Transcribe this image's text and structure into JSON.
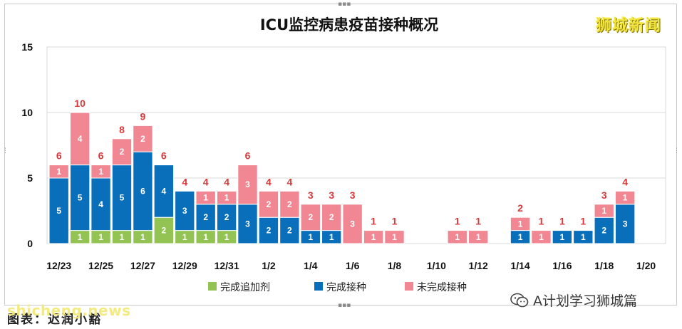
{
  "chart_data": {
    "type": "bar",
    "stacked": true,
    "title": "ICU监控病患疫苗接种概况",
    "ylim": [
      0,
      15
    ],
    "yticks": [
      0,
      5,
      10,
      15
    ],
    "grid": true,
    "legend_position": "bottom",
    "x_dates": [
      "12/23",
      "12/24",
      "12/25",
      "12/26",
      "12/27",
      "12/28",
      "12/29",
      "12/30",
      "12/31",
      "1/1",
      "1/2",
      "1/3",
      "1/4",
      "1/5",
      "1/6",
      "1/7",
      "1/8",
      "1/9",
      "1/10",
      "1/11",
      "1/12",
      "1/13",
      "1/14",
      "1/15",
      "1/16",
      "1/17",
      "1/18",
      "1/19"
    ],
    "xtick_labels": [
      "12/23",
      "12/25",
      "12/27",
      "12/29",
      "12/31",
      "1/2",
      "1/4",
      "1/6",
      "1/8",
      "1/10",
      "1/12",
      "1/14",
      "1/16",
      "1/18",
      "1/20"
    ],
    "series": [
      {
        "name": "完成追加剂",
        "color": "#92c353",
        "values": [
          0,
          1,
          1,
          1,
          1,
          2,
          1,
          1,
          1,
          0,
          0,
          0,
          0,
          0,
          0,
          0,
          0,
          0,
          0,
          0,
          0,
          0,
          0,
          0,
          0,
          0,
          0,
          0
        ]
      },
      {
        "name": "完成接种",
        "color": "#0a6fba",
        "values": [
          5,
          5,
          4,
          5,
          6,
          4,
          3,
          2,
          2,
          3,
          2,
          2,
          1,
          1,
          0,
          0,
          0,
          0,
          0,
          0,
          0,
          0,
          1,
          0,
          1,
          1,
          2,
          3
        ]
      },
      {
        "name": "未完成接种",
        "color": "#f08792",
        "values": [
          1,
          4,
          1,
          2,
          2,
          0,
          0,
          1,
          1,
          3,
          2,
          2,
          2,
          2,
          3,
          1,
          1,
          0,
          0,
          1,
          1,
          0,
          1,
          1,
          0,
          0,
          1,
          1
        ]
      }
    ],
    "totals": [
      6,
      10,
      6,
      8,
      9,
      6,
      4,
      4,
      4,
      6,
      4,
      4,
      3,
      3,
      3,
      1,
      1,
      null,
      null,
      1,
      1,
      null,
      2,
      1,
      1,
      1,
      3,
      4
    ]
  },
  "brand": "狮城新闻",
  "wechat_account": "A计划学习狮城篇",
  "watermark": "shicheng.news",
  "credit": "图表：迟润小豁"
}
